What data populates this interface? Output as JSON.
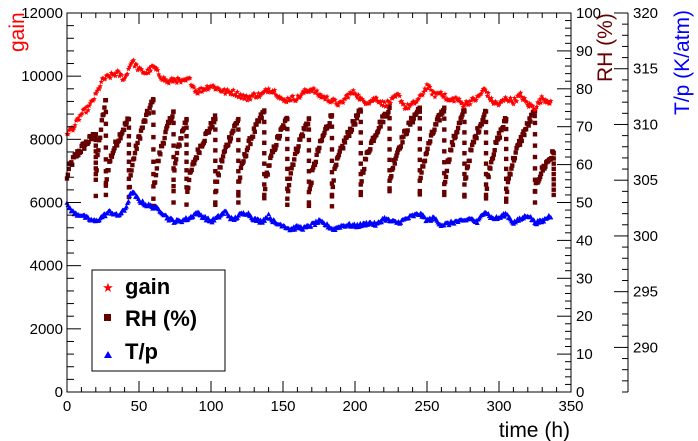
{
  "chart_data": {
    "type": "scatter",
    "x": {
      "label": "time (h)",
      "range": [
        0,
        350
      ],
      "ticks": [
        0,
        50,
        100,
        150,
        200,
        250,
        300,
        350
      ],
      "tick_labels": [
        "0",
        "50",
        "100",
        "150",
        "200",
        "250",
        "300",
        "350"
      ]
    },
    "axes": {
      "gain": {
        "label": "gain",
        "color": "#ff0000",
        "range": [
          0,
          12000
        ],
        "ticks": [
          0,
          2000,
          4000,
          6000,
          8000,
          10000,
          12000
        ],
        "tick_labels": [
          "0",
          "2000",
          "4000",
          "6000",
          "8000",
          "10000",
          "12000"
        ]
      },
      "rh": {
        "label": "RH (%)",
        "color": "#660000",
        "range": [
          0,
          100
        ],
        "ticks": [
          0,
          10,
          20,
          30,
          40,
          50,
          60,
          70,
          80,
          90,
          100
        ],
        "tick_labels": [
          "0",
          "10",
          "20",
          "30",
          "40",
          "50",
          "60",
          "70",
          "80",
          "90",
          "100"
        ]
      },
      "tp": {
        "label": "T/p (K/atm)",
        "color": "#0000ff",
        "range": [
          286,
          320
        ],
        "ticks": [
          290,
          295,
          300,
          305,
          310,
          315,
          320
        ],
        "tick_labels": [
          "290",
          "295",
          "300",
          "305",
          "310",
          "315",
          "320"
        ]
      }
    },
    "legend": {
      "position": "bottom-left",
      "entries": [
        {
          "label": "gain",
          "color": "#ff0000",
          "marker": "star"
        },
        {
          "label": "RH (%)",
          "color": "#660000",
          "marker": "square"
        },
        {
          "label": "T/p",
          "color": "#0000ff",
          "marker": "triangle"
        }
      ]
    },
    "series": [
      {
        "name": "gain",
        "axis": "gain",
        "color": "#ff0000",
        "x": [
          0,
          5,
          10,
          15,
          20,
          25,
          30,
          35,
          40,
          45,
          50,
          55,
          60,
          65,
          70,
          75,
          80,
          85,
          90,
          95,
          100,
          105,
          110,
          115,
          120,
          125,
          130,
          135,
          140,
          145,
          150,
          155,
          160,
          165,
          170,
          175,
          180,
          185,
          190,
          195,
          200,
          205,
          210,
          215,
          220,
          225,
          230,
          235,
          240,
          245,
          250,
          255,
          260,
          265,
          270,
          275,
          280,
          285,
          290,
          295,
          300,
          305,
          310,
          315,
          320,
          325,
          330,
          335
        ],
        "values": [
          8200,
          8400,
          8800,
          9000,
          9400,
          9900,
          10000,
          10100,
          9900,
          10500,
          10200,
          10100,
          10300,
          10000,
          9800,
          9900,
          9800,
          9900,
          9500,
          9600,
          9700,
          9600,
          9500,
          9500,
          9400,
          9300,
          9400,
          9400,
          9600,
          9500,
          9200,
          9300,
          9300,
          9500,
          9600,
          9400,
          9300,
          9200,
          9100,
          9400,
          9500,
          9200,
          9200,
          9300,
          9100,
          9200,
          9400,
          9000,
          9100,
          9300,
          9700,
          9400,
          9500,
          9200,
          9300,
          9100,
          9200,
          9300,
          9600,
          9200,
          9100,
          9300,
          9200,
          9400,
          9100,
          9000,
          9300,
          9200
        ]
      },
      {
        "name": "RH (%)",
        "axis": "rh",
        "color": "#660000",
        "cycles": [
          [
            0,
            20,
            56,
            68
          ],
          [
            20,
            27,
            52,
            77
          ],
          [
            27,
            43,
            54,
            72
          ],
          [
            43,
            60,
            51,
            77
          ],
          [
            60,
            74,
            50,
            74
          ],
          [
            74,
            83,
            54,
            72
          ],
          [
            83,
            103,
            50,
            72
          ],
          [
            103,
            119,
            50,
            72
          ],
          [
            119,
            137,
            52,
            74
          ],
          [
            137,
            153,
            51,
            72
          ],
          [
            153,
            168,
            50,
            72
          ],
          [
            168,
            184,
            49,
            73
          ],
          [
            184,
            204,
            52,
            74
          ],
          [
            204,
            224,
            53,
            75
          ],
          [
            224,
            245,
            53,
            75
          ],
          [
            245,
            262,
            52,
            75
          ],
          [
            262,
            276,
            52,
            74
          ],
          [
            276,
            291,
            52,
            74
          ],
          [
            291,
            305,
            51,
            72
          ],
          [
            305,
            325,
            50,
            74
          ],
          [
            325,
            338,
            52,
            63
          ]
        ]
      },
      {
        "name": "T/p",
        "axis": "tp",
        "color": "#0000ff",
        "x": [
          0,
          5,
          10,
          15,
          20,
          25,
          30,
          35,
          40,
          45,
          50,
          55,
          60,
          65,
          70,
          75,
          80,
          85,
          90,
          95,
          100,
          105,
          110,
          115,
          120,
          125,
          130,
          135,
          140,
          145,
          150,
          155,
          160,
          165,
          170,
          175,
          180,
          185,
          190,
          195,
          200,
          205,
          210,
          215,
          220,
          225,
          230,
          235,
          240,
          245,
          250,
          255,
          260,
          265,
          270,
          275,
          280,
          285,
          290,
          295,
          300,
          305,
          310,
          315,
          320,
          325,
          330,
          335
        ],
        "values": [
          302.8,
          302.0,
          301.9,
          301.5,
          301.3,
          301.8,
          302.2,
          301.8,
          302.3,
          304.0,
          303.2,
          302.8,
          302.6,
          302.3,
          301.6,
          301.3,
          301.4,
          301.6,
          302.1,
          301.7,
          301.3,
          301.7,
          302.2,
          301.4,
          301.9,
          302.1,
          301.5,
          301.3,
          301.8,
          301.1,
          301.0,
          300.6,
          300.8,
          300.7,
          301.0,
          301.3,
          301.0,
          300.6,
          300.9,
          301.0,
          300.9,
          301.0,
          301.2,
          301.0,
          301.6,
          301.3,
          301.2,
          301.5,
          301.8,
          302.0,
          301.4,
          301.6,
          301.0,
          301.1,
          301.3,
          301.3,
          301.6,
          301.2,
          302.3,
          301.6,
          301.6,
          302.0,
          301.2,
          301.5,
          301.9,
          301.2,
          301.3,
          301.8
        ]
      }
    ]
  }
}
